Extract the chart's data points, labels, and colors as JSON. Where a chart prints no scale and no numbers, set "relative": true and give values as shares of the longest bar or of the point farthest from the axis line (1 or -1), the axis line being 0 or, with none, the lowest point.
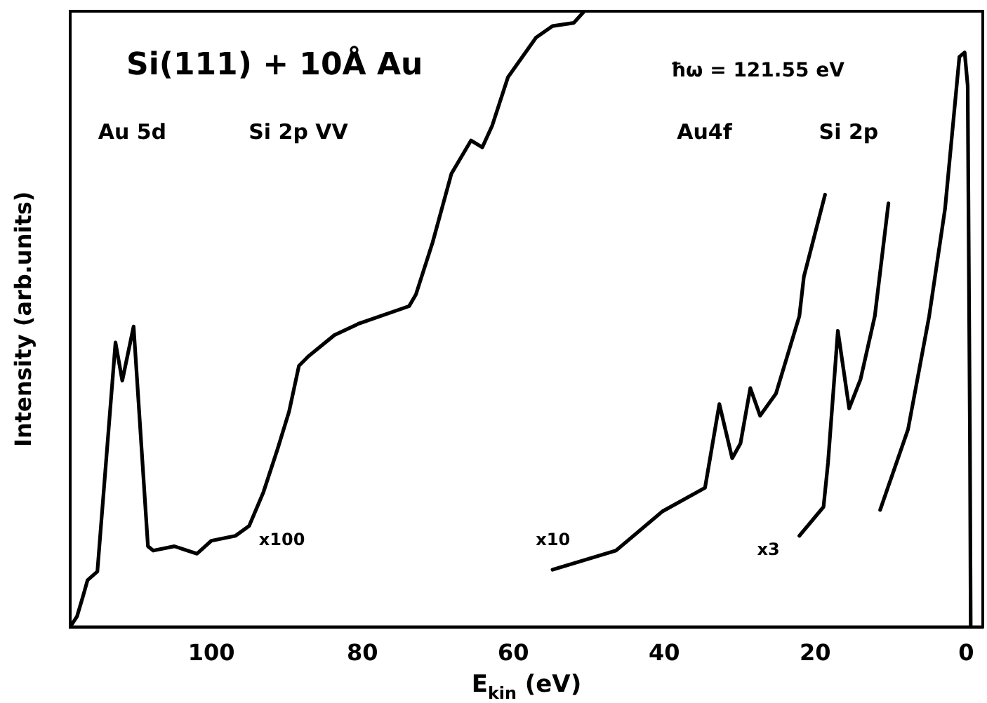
{
  "chart_data": {
    "type": "line",
    "title": "Si(111) + 10Å Au",
    "xlabel": "E$_{kin}$ (eV)",
    "ylabel": "Intensity (arb.units)",
    "relative": true,
    "xlim": [
      118.7,
      -2.2
    ],
    "xticks": [
      100,
      80,
      60,
      40,
      20,
      0
    ],
    "grid": false,
    "legend": false,
    "marker": "none",
    "line_style": "solid",
    "series": [
      {
        "color": "#000000",
        "x": [
          118.7,
          117.8,
          117,
          116.4,
          115.1,
          112.7,
          111.8,
          110.3,
          108.4,
          107.7,
          104.9,
          101.9,
          100,
          96.8,
          95,
          93.1,
          91.2,
          89.7,
          88.4,
          87.1,
          83.7,
          80.4,
          73.8,
          72.9,
          70.7,
          68.2,
          65.6,
          64.1,
          62.8,
          60.7,
          57,
          54.8,
          52,
          50.6
        ],
        "values": [
          0,
          0.017,
          0.05,
          0.076,
          0.09,
          0.462,
          0.4,
          0.488,
          0.131,
          0.124,
          0.131,
          0.119,
          0.14,
          0.148,
          0.164,
          0.219,
          0.29,
          0.35,
          0.424,
          0.44,
          0.474,
          0.493,
          0.521,
          0.54,
          0.624,
          0.736,
          0.79,
          0.779,
          0.814,
          0.893,
          0.957,
          0.976,
          0.981,
          1
        ]
      },
      {
        "color": "#000000",
        "x": [
          54.8,
          46.4,
          40.2,
          34.6,
          32.7,
          31,
          29.9,
          28.6,
          27.3,
          25.2,
          22.1,
          21.5,
          18.7
        ],
        "values": [
          0.093,
          0.124,
          0.188,
          0.226,
          0.362,
          0.274,
          0.298,
          0.388,
          0.343,
          0.379,
          0.505,
          0.569,
          0.702
        ]
      },
      {
        "color": "#000000",
        "x": [
          22.1,
          18.9,
          18.3,
          17,
          15.5,
          14,
          12.1,
          10.3
        ],
        "values": [
          0.148,
          0.195,
          0.267,
          0.481,
          0.355,
          0.402,
          0.505,
          0.688
        ]
      },
      {
        "color": "#000000",
        "x": [
          11.4,
          7.7,
          4.9,
          2.8,
          0.9,
          0.2,
          -0.2,
          -0.5,
          -0.6
        ],
        "values": [
          0.19,
          0.321,
          0.505,
          0.679,
          0.926,
          0.933,
          0.879,
          0.3,
          0
        ]
      }
    ],
    "annotations": [
      "Au 5d",
      "Si 2p VV",
      "Au4f",
      "Si 2p",
      "x100",
      "x10",
      "x3",
      "ħω = 121.55 eV"
    ]
  }
}
